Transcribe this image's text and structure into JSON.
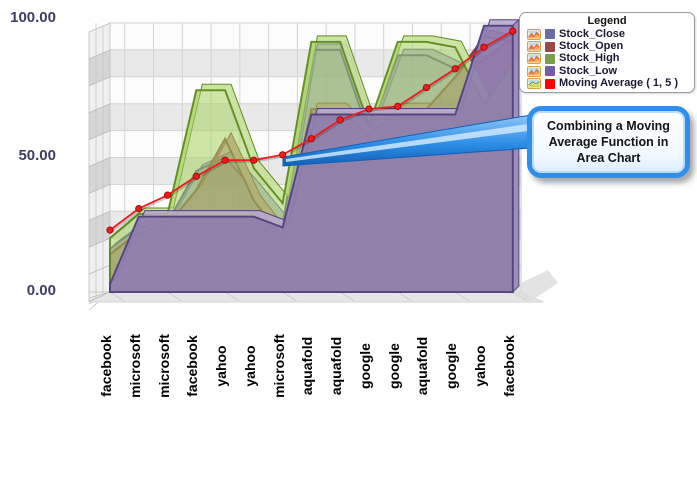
{
  "y_axis": {
    "labels": [
      "100.00",
      "50.00",
      "0.00"
    ]
  },
  "legend": {
    "title": "Legend",
    "items": [
      {
        "label": "Stock_Close",
        "swatch": "#6b6ba8",
        "icon": "area-chart-icon"
      },
      {
        "label": "Stock_Open",
        "swatch": "#9e4747",
        "icon": "area-chart-icon"
      },
      {
        "label": "Stock_High",
        "swatch": "#7d9e4a",
        "icon": "area-chart-icon"
      },
      {
        "label": "Stock_Low",
        "swatch": "#6f5fa8",
        "icon": "area-chart-icon"
      },
      {
        "label": "Moving Average ( 1, 5 )",
        "swatch": "#ff0000",
        "icon": "ma-chart-icon"
      }
    ]
  },
  "callout": {
    "text": "Combining a Moving Average Function in Area Chart"
  },
  "chart_data": {
    "type": "area",
    "categories": [
      "facebook",
      "microsoft",
      "microsoft",
      "facebook",
      "yahoo",
      "yahoo",
      "microsoft",
      "aquafold",
      "aquafold",
      "google",
      "google",
      "aquafold",
      "google",
      "yahoo",
      "facebook"
    ],
    "ylim": [
      0,
      100
    ],
    "yticks": [
      0,
      50,
      100
    ],
    "grid": true,
    "legend_position": "top-right",
    "projection": "3d",
    "series": [
      {
        "name": "Stock_Close",
        "fill": "#7d7db6",
        "stroke": "#4a4a8c",
        "opacity": 0.6,
        "values": [
          16,
          24,
          26,
          45,
          50,
          38,
          25,
          90,
          90,
          59,
          88,
          88,
          83,
          86,
          95
        ]
      },
      {
        "name": "Stock_Open",
        "fill": "#a04c4c",
        "stroke": "#7e3b3b",
        "opacity": 0.5,
        "values": [
          14,
          22,
          25,
          38,
          57,
          34,
          20,
          68,
          68,
          58,
          68,
          68,
          80,
          95,
          93
        ]
      },
      {
        "name": "Stock_High",
        "fill": "#a8d162",
        "stroke": "#5f8c1f",
        "opacity": 0.55,
        "values": [
          20,
          29,
          29,
          75,
          75,
          46,
          33,
          93,
          93,
          62,
          93,
          93,
          91,
          70,
          85
        ]
      },
      {
        "name": "Stock_Low",
        "fill": "#8f7cb0",
        "stroke": "#53407e",
        "opacity": 0.9,
        "values": [
          3,
          28,
          28,
          28,
          28,
          28,
          24,
          66,
          66,
          66,
          66,
          66,
          66,
          99,
          99
        ]
      }
    ],
    "moving_average": {
      "name": "Moving Average ( 1, 5 )",
      "color": "#ee1c1c",
      "values": [
        23,
        31,
        36,
        43,
        49,
        49,
        51,
        57,
        64,
        68,
        69,
        76,
        83,
        91,
        97
      ]
    }
  }
}
